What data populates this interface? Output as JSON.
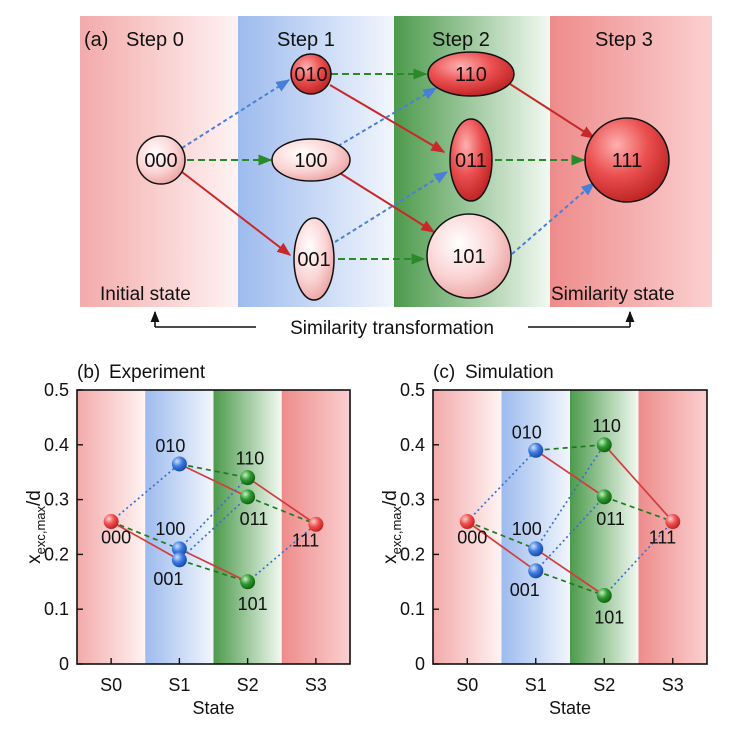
{
  "panel_a": {
    "label": "(a)",
    "steps": [
      "Step 0",
      "Step 1",
      "Step 2",
      "Step 3"
    ],
    "initial_label": "Initial state",
    "similarity_label": "Similarity state",
    "transformation_label": "Similarity transformation",
    "nodes": [
      "000",
      "010",
      "100",
      "001",
      "110",
      "011",
      "101",
      "111"
    ]
  },
  "chart_data": [
    {
      "type": "scatter",
      "panel": "(b)",
      "title": "Experiment",
      "xlabel": "State",
      "ylabel": "x_exc,max/d",
      "ylabel_main": "x",
      "ylabel_sub": "exc,max",
      "ylabel_tail": "/d",
      "categories": [
        "S0",
        "S1",
        "S2",
        "S3"
      ],
      "ylim": [
        0,
        0.5
      ],
      "yticks": [
        "0",
        "0.1",
        "0.2",
        "0.3",
        "0.4",
        "0.5"
      ],
      "points": [
        {
          "label": "000",
          "state": "S0",
          "y": 0.26
        },
        {
          "label": "010",
          "state": "S1",
          "y": 0.365
        },
        {
          "label": "100",
          "state": "S1",
          "y": 0.21
        },
        {
          "label": "001",
          "state": "S1",
          "y": 0.19
        },
        {
          "label": "110",
          "state": "S2",
          "y": 0.34
        },
        {
          "label": "011",
          "state": "S2",
          "y": 0.305
        },
        {
          "label": "101",
          "state": "S2",
          "y": 0.15
        },
        {
          "label": "111",
          "state": "S3",
          "y": 0.255
        }
      ]
    },
    {
      "type": "scatter",
      "panel": "(c)",
      "title": "Simulation",
      "xlabel": "State",
      "ylabel": "x_exc,max/d",
      "ylabel_main": "x",
      "ylabel_sub": "exc,max",
      "ylabel_tail": "/d",
      "categories": [
        "S0",
        "S1",
        "S2",
        "S3"
      ],
      "ylim": [
        0,
        0.5
      ],
      "yticks": [
        "0",
        "0.1",
        "0.2",
        "0.3",
        "0.4",
        "0.5"
      ],
      "points": [
        {
          "label": "000",
          "state": "S0",
          "y": 0.26
        },
        {
          "label": "010",
          "state": "S1",
          "y": 0.39
        },
        {
          "label": "100",
          "state": "S1",
          "y": 0.21
        },
        {
          "label": "001",
          "state": "S1",
          "y": 0.17
        },
        {
          "label": "110",
          "state": "S2",
          "y": 0.4
        },
        {
          "label": "011",
          "state": "S2",
          "y": 0.305
        },
        {
          "label": "101",
          "state": "S2",
          "y": 0.125
        },
        {
          "label": "111",
          "state": "S3",
          "y": 0.26
        }
      ]
    }
  ]
}
